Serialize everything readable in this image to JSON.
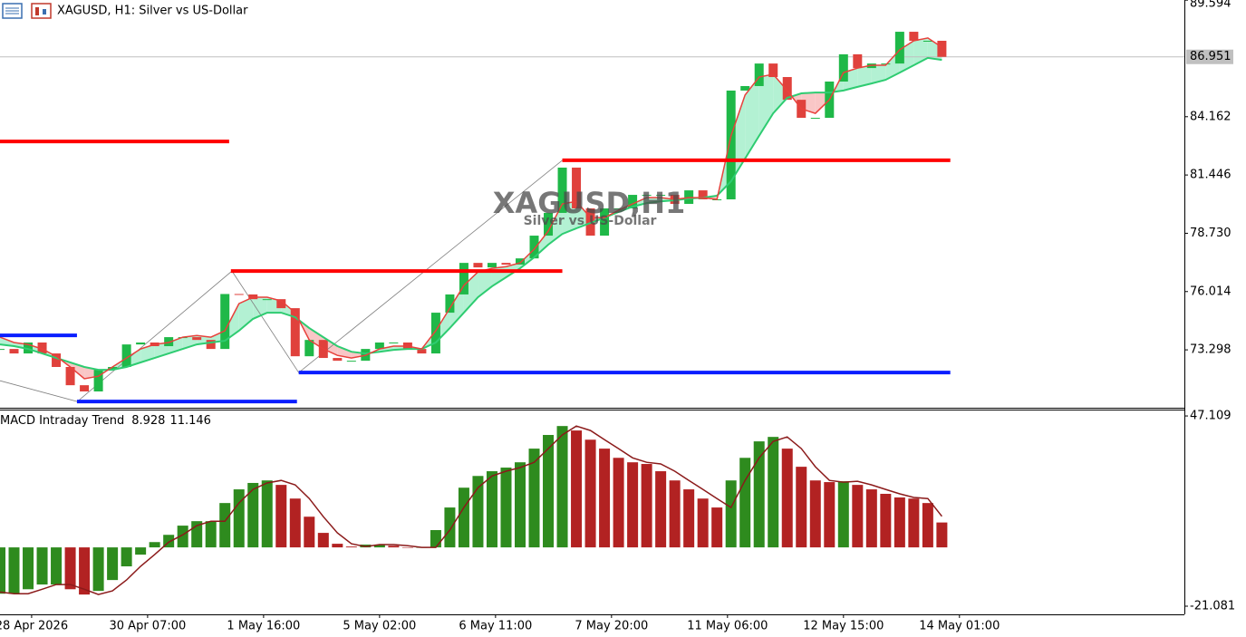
{
  "chart_data": [
    {
      "type": "candlestick",
      "title": "XAGUSD, H1:  Silver vs US-Dollar",
      "watermark": [
        "XAGUSD,H1",
        "Silver vs US-Dollar"
      ],
      "x": [
        0,
        4,
        8,
        12,
        16,
        20,
        24,
        28,
        32,
        36,
        40,
        44,
        48,
        52,
        56,
        60,
        64,
        68,
        72,
        76,
        80,
        84,
        88,
        92,
        96,
        100,
        104,
        108,
        112,
        116,
        120,
        124,
        128,
        132,
        136,
        140,
        144,
        148,
        152,
        156,
        160,
        164,
        168,
        172,
        176,
        180,
        184,
        188,
        192,
        196,
        200,
        204,
        208,
        212,
        216,
        220,
        224,
        228,
        232,
        236,
        240,
        244,
        248,
        252,
        256,
        260,
        264,
        268
      ],
      "values": [
        73.34,
        73.13,
        73.64,
        73.13,
        72.5,
        71.65,
        71.36,
        72.37,
        72.5,
        73.55,
        73.64,
        73.47,
        73.89,
        73.89,
        73.76,
        73.34,
        75.9,
        75.88,
        75.66,
        75.66,
        75.24,
        73.0,
        73.76,
        72.92,
        72.79,
        72.79,
        73.34,
        73.64,
        73.64,
        73.34,
        73.13,
        75.03,
        75.88,
        77.35,
        77.14,
        77.35,
        77.27,
        77.56,
        78.62,
        79.68,
        81.79,
        79.89,
        78.62,
        79.89,
        79.89,
        80.52,
        80.52,
        80.52,
        80.1,
        80.73,
        80.31,
        80.31,
        85.38,
        85.59,
        86.64,
        86.01,
        84.95,
        84.11,
        84.11,
        85.8,
        87.07,
        86.43,
        86.64,
        86.64,
        88.12,
        87.7,
        87.7,
        86.951
      ],
      "color_up": "#1fb848",
      "color_down": "#e0413c",
      "ma_fast": {
        "color": "#e8413c",
        "values": [
          73.89,
          73.64,
          73.55,
          73.34,
          73.0,
          72.5,
          71.95,
          72.07,
          72.5,
          72.92,
          73.34,
          73.55,
          73.64,
          73.89,
          73.97,
          73.89,
          74.19,
          75.45,
          75.75,
          75.75,
          75.58,
          75.03,
          73.76,
          73.34,
          73.04,
          72.92,
          73.04,
          73.34,
          73.47,
          73.47,
          73.34,
          74.19,
          75.24,
          76.3,
          76.93,
          77.1,
          77.18,
          77.35,
          77.99,
          78.83,
          80.1,
          80.22,
          79.46,
          79.46,
          79.8,
          80.1,
          80.39,
          80.39,
          80.31,
          80.39,
          80.39,
          80.31,
          83.27,
          85.17,
          86.01,
          86.14,
          85.38,
          84.53,
          84.32,
          84.95,
          86.22,
          86.43,
          86.56,
          86.56,
          87.28,
          87.7,
          87.83,
          87.4
        ]
      },
      "ma_slow": {
        "color": "#2ecc71",
        "values": [
          73.55,
          73.47,
          73.34,
          73.13,
          72.92,
          72.71,
          72.5,
          72.37,
          72.37,
          72.5,
          72.71,
          72.92,
          73.13,
          73.34,
          73.55,
          73.64,
          73.72,
          74.19,
          74.74,
          75.03,
          75.03,
          74.82,
          74.31,
          73.89,
          73.47,
          73.21,
          73.13,
          73.21,
          73.3,
          73.34,
          73.34,
          73.64,
          74.31,
          75.03,
          75.75,
          76.26,
          76.68,
          77.1,
          77.61,
          78.2,
          78.7,
          78.96,
          79.21,
          79.46,
          79.72,
          79.97,
          80.14,
          80.22,
          80.27,
          80.35,
          80.39,
          80.48,
          81.15,
          82.21,
          83.27,
          84.32,
          85.04,
          85.25,
          85.29,
          85.29,
          85.38,
          85.55,
          85.71,
          85.88,
          86.22,
          86.56,
          86.9,
          86.81
        ]
      },
      "fill_up": "#a6eecb",
      "fill_down": "#f8bcbc",
      "levels": [
        {
          "color": "#ff0000",
          "start": 0,
          "end": 65.2,
          "value": 83.01
        },
        {
          "color": "#ff0000",
          "start": 65.7,
          "end": 160,
          "value": 76.97
        },
        {
          "color": "#ff0000",
          "start": 160,
          "end": 270.4,
          "value": 82.13
        },
        {
          "color": "#0a1eff",
          "start": 0,
          "end": 21.9,
          "value": 73.97
        },
        {
          "color": "#0a1eff",
          "start": 21.9,
          "end": 84.5,
          "value": 70.89
        },
        {
          "color": "#0a1eff",
          "start": 85,
          "end": 270.4,
          "value": 72.24
        }
      ],
      "zigzag": {
        "color": "#808080",
        "x": [
          0,
          22,
          66,
          85,
          160
        ],
        "values": [
          71.86,
          70.89,
          76.97,
          72.24,
          82.13
        ]
      },
      "last_price": 86.951,
      "xlim": [
        0,
        337
      ],
      "ylim": [
        70.6,
        89.6
      ],
      "yticks": [
        73.298,
        76.014,
        {
          "value": 78.73,
          "label": "78.730"
        },
        81.446,
        84.162,
        89.594
      ]
    },
    {
      "type": "bar",
      "indicator_name": "MACD Intraday Trend",
      "indicator_values": [
        8.928,
        11.146
      ],
      "x": [
        0,
        4,
        8,
        12,
        16,
        20,
        24,
        28,
        32,
        36,
        40,
        44,
        48,
        52,
        56,
        60,
        64,
        68,
        72,
        76,
        80,
        84,
        88,
        92,
        96,
        100,
        104,
        108,
        112,
        116,
        120,
        124,
        128,
        132,
        136,
        140,
        144,
        148,
        152,
        156,
        160,
        164,
        168,
        172,
        176,
        180,
        184,
        188,
        192,
        196,
        200,
        204,
        208,
        212,
        216,
        220,
        224,
        228,
        232,
        236,
        240,
        244,
        248,
        252,
        256,
        260,
        264,
        268
      ],
      "values": [
        -16.6,
        -16.6,
        -15,
        -13.3,
        -13.3,
        -15,
        -16.9,
        -15.6,
        -11.7,
        -6.8,
        -2.6,
        1.9,
        4.5,
        7.8,
        9.4,
        9.4,
        15.9,
        20.8,
        23.1,
        24.0,
        22.4,
        17.5,
        11.0,
        5.2,
        1.3,
        0.3,
        1.0,
        1.0,
        0.6,
        0,
        0,
        6.2,
        14.3,
        21.4,
        25.6,
        27.3,
        28.6,
        30.5,
        35.4,
        40.3,
        43.5,
        41.9,
        38.6,
        35.4,
        32.1,
        30.5,
        29.9,
        27.3,
        24.0,
        20.8,
        17.5,
        14.3,
        24.0,
        32.1,
        38.0,
        39.6,
        35.4,
        28.9,
        24.0,
        23.4,
        23.7,
        22.4,
        20.8,
        19.2,
        17.9,
        17.5,
        15.9,
        8.928
      ],
      "signal": {
        "color": "#8b1a1a",
        "values": [
          -16.0,
          -16.6,
          -16.6,
          -15.0,
          -13.3,
          -13.3,
          -15.0,
          -16.9,
          -15.6,
          -11.7,
          -6.8,
          -2.6,
          1.9,
          4.5,
          7.8,
          9.4,
          9.4,
          15.9,
          20.8,
          23.1,
          24.0,
          22.4,
          17.5,
          11.0,
          5.2,
          1.3,
          0.3,
          1.0,
          1.0,
          0.6,
          0,
          0,
          6.2,
          14.3,
          21.4,
          25.6,
          27.3,
          28.6,
          30.5,
          35.4,
          40.3,
          43.5,
          41.9,
          38.6,
          35.4,
          32.1,
          30.5,
          29.9,
          27.3,
          24.0,
          20.8,
          17.5,
          14.3,
          24.0,
          32.1,
          38.0,
          39.6,
          35.4,
          28.9,
          24.0,
          23.4,
          23.7,
          22.4,
          20.8,
          19.2,
          17.9,
          17.5,
          11.146
        ]
      },
      "color_up": "#2e8b1e",
      "color_down": "#b22222",
      "xlim": [
        0,
        337
      ],
      "ylim": [
        -24,
        49.4
      ],
      "yticks": [
        47.109,
        -21.081
      ],
      "xticks": [
        {
          "value": 9,
          "label": "28 Apr 2026"
        },
        {
          "value": 42,
          "label": "30 Apr 07:00"
        },
        {
          "value": 75,
          "label": "1 May 16:00"
        },
        {
          "value": 108,
          "label": "5 May 02:00"
        },
        {
          "value": 141,
          "label": "6 May 11:00"
        },
        {
          "value": 174,
          "label": "7 May 20:00"
        },
        {
          "value": 207,
          "label": "11 May 06:00"
        },
        {
          "value": 240,
          "label": "12 May 15:00"
        },
        {
          "value": 273,
          "label": "14 May 01:00"
        }
      ]
    }
  ]
}
